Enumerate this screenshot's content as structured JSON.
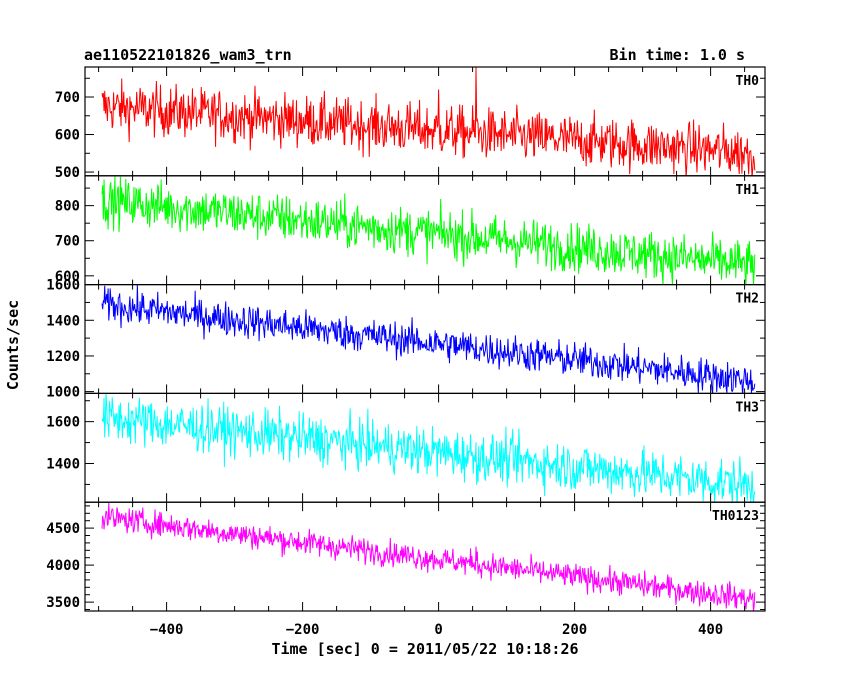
{
  "header": {
    "title": "ae110522101826_wam3_trn",
    "bin_time": "Bin time: 1.0 s"
  },
  "chart_data": {
    "type": "line",
    "xlabel": "Time [sec] 0 = 2011/05/22 10:18:26",
    "ylabel": "Counts/sec",
    "xlim": [
      -520,
      480
    ],
    "x_ticks": [
      -400,
      -200,
      0,
      200,
      400
    ],
    "x_data_range": [
      -495,
      465
    ],
    "panels": [
      {
        "name": "TH0",
        "color": "#ff0000",
        "ylim": [
          490,
          780
        ],
        "y_ticks": [
          500,
          600,
          700
        ],
        "start_mean": 675,
        "end_mean": 550,
        "noise": 34,
        "spikes": [
          {
            "x": 55,
            "y": 780
          },
          {
            "x": 0,
            "y": 720
          }
        ]
      },
      {
        "name": "TH1",
        "color": "#00ff00",
        "ylim": [
          575,
          885
        ],
        "y_ticks": [
          600,
          700,
          800
        ],
        "start_mean": 815,
        "end_mean": 630,
        "noise": 34,
        "spikes": []
      },
      {
        "name": "TH2",
        "color": "#0000ff",
        "ylim": [
          990,
          1600
        ],
        "y_ticks": [
          1000,
          1200,
          1400,
          1600
        ],
        "start_mean": 1490,
        "end_mean": 1060,
        "noise": 48,
        "spikes": []
      },
      {
        "name": "TH3",
        "color": "#00ffff",
        "ylim": [
          1215,
          1735
        ],
        "y_ticks": [
          1400,
          1600
        ],
        "start_mean": 1620,
        "end_mean": 1295,
        "noise": 58,
        "spikes": []
      },
      {
        "name": "TH0123",
        "color": "#ff00ff",
        "ylim": [
          3380,
          4850
        ],
        "y_ticks": [
          3500,
          4000,
          4500
        ],
        "start_mean": 4650,
        "end_mean": 3540,
        "noise": 85,
        "spikes": [
          {
            "x": 55,
            "y": 4250
          }
        ]
      }
    ]
  }
}
